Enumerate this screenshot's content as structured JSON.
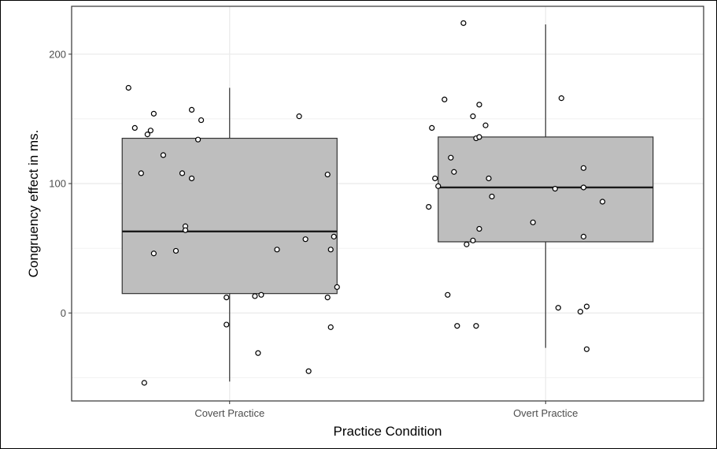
{
  "chart_data": {
    "type": "boxplot",
    "xlabel": "Practice Condition",
    "ylabel": "Congruency effect in ms.",
    "categories": [
      "Covert Practice",
      "Overt Practice"
    ],
    "ylim": [
      -68,
      237
    ],
    "yticks": [
      0,
      100,
      200
    ],
    "grid": true,
    "box_fill": "#bebebe",
    "panel_background": "#ffffff",
    "grid_color": "#ebebeb",
    "boxes": [
      {
        "category": "Covert Practice",
        "min": -53,
        "q1": 15,
        "median": 63,
        "q3": 135,
        "max": 174
      },
      {
        "category": "Overt Practice",
        "min": -27,
        "q1": 55,
        "median": 97,
        "q3": 136,
        "max": 223
      }
    ],
    "points": [
      [
        {
          "jitter": -0.32,
          "y": 174
        },
        {
          "jitter": -0.3,
          "y": 143
        },
        {
          "jitter": -0.26,
          "y": 138
        },
        {
          "jitter": -0.25,
          "y": 141
        },
        {
          "jitter": -0.24,
          "y": 154
        },
        {
          "jitter": -0.21,
          "y": 122
        },
        {
          "jitter": -0.28,
          "y": 108
        },
        {
          "jitter": -0.12,
          "y": 157
        },
        {
          "jitter": -0.09,
          "y": 149
        },
        {
          "jitter": -0.1,
          "y": 134
        },
        {
          "jitter": -0.15,
          "y": 108
        },
        {
          "jitter": -0.12,
          "y": 104
        },
        {
          "jitter": -0.14,
          "y": 67
        },
        {
          "jitter": -0.14,
          "y": 64
        },
        {
          "jitter": -0.17,
          "y": 48
        },
        {
          "jitter": -0.24,
          "y": 46
        },
        {
          "jitter": 0.22,
          "y": 152
        },
        {
          "jitter": 0.31,
          "y": 107
        },
        {
          "jitter": 0.33,
          "y": 59
        },
        {
          "jitter": 0.24,
          "y": 57
        },
        {
          "jitter": 0.15,
          "y": 49
        },
        {
          "jitter": 0.32,
          "y": 49
        },
        {
          "jitter": 0.34,
          "y": 20
        },
        {
          "jitter": 0.31,
          "y": 12
        },
        {
          "jitter": 0.1,
          "y": 14
        },
        {
          "jitter": 0.08,
          "y": 13
        },
        {
          "jitter": -0.01,
          "y": 12
        },
        {
          "jitter": -0.01,
          "y": -9
        },
        {
          "jitter": 0.32,
          "y": -11
        },
        {
          "jitter": 0.09,
          "y": -31
        },
        {
          "jitter": 0.25,
          "y": -45
        },
        {
          "jitter": -0.27,
          "y": -54
        }
      ],
      [
        {
          "jitter": -0.26,
          "y": 224
        },
        {
          "jitter": -0.32,
          "y": 165
        },
        {
          "jitter": -0.36,
          "y": 143
        },
        {
          "jitter": -0.21,
          "y": 161
        },
        {
          "jitter": -0.23,
          "y": 152
        },
        {
          "jitter": -0.19,
          "y": 145
        },
        {
          "jitter": -0.22,
          "y": 135
        },
        {
          "jitter": -0.21,
          "y": 136
        },
        {
          "jitter": 0.05,
          "y": 166
        },
        {
          "jitter": -0.3,
          "y": 120
        },
        {
          "jitter": -0.29,
          "y": 109
        },
        {
          "jitter": -0.35,
          "y": 104
        },
        {
          "jitter": -0.34,
          "y": 98
        },
        {
          "jitter": -0.37,
          "y": 82
        },
        {
          "jitter": -0.18,
          "y": 104
        },
        {
          "jitter": -0.17,
          "y": 90
        },
        {
          "jitter": -0.21,
          "y": 65
        },
        {
          "jitter": -0.25,
          "y": 53
        },
        {
          "jitter": -0.23,
          "y": 56
        },
        {
          "jitter": -0.04,
          "y": 70
        },
        {
          "jitter": 0.12,
          "y": 112
        },
        {
          "jitter": 0.12,
          "y": 97
        },
        {
          "jitter": 0.03,
          "y": 96
        },
        {
          "jitter": 0.18,
          "y": 86
        },
        {
          "jitter": 0.12,
          "y": 59
        },
        {
          "jitter": -0.31,
          "y": 14
        },
        {
          "jitter": 0.04,
          "y": 4
        },
        {
          "jitter": 0.11,
          "y": 1
        },
        {
          "jitter": 0.13,
          "y": 5
        },
        {
          "jitter": -0.28,
          "y": -10
        },
        {
          "jitter": -0.22,
          "y": -10
        },
        {
          "jitter": 0.13,
          "y": -28
        }
      ]
    ]
  }
}
